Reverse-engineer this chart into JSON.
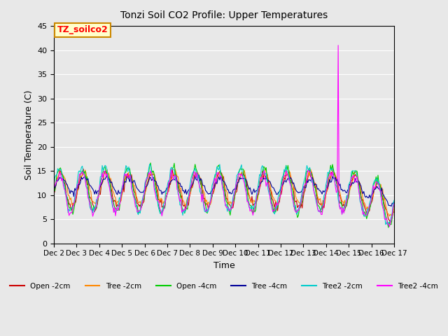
{
  "title": "Tonzi Soil CO2 Profile: Upper Temperatures",
  "xlabel": "Time",
  "ylabel": "Soil Temperature (C)",
  "ylim": [
    0,
    45
  ],
  "yticks": [
    0,
    5,
    10,
    15,
    20,
    25,
    30,
    35,
    40,
    45
  ],
  "x_labels": [
    "Dec 2",
    "Dec 3",
    "Dec 4",
    "Dec 5",
    "Dec 6",
    "Dec 7",
    "Dec 8",
    "Dec 9",
    "Dec 10",
    "Dec 11",
    "Dec 12",
    "Dec 13",
    "Dec 14",
    "Dec 15",
    "Dec 16",
    "Dec 17"
  ],
  "background_color": "#e8e8e8",
  "plot_bg_color": "#e8e8e8",
  "annotation_text": "TZ_soilco2",
  "annotation_bg": "#ffffcc",
  "annotation_border": "#cc8800",
  "series": [
    {
      "label": "Open -2cm",
      "color": "#cc0000"
    },
    {
      "label": "Tree -2cm",
      "color": "#ff8800"
    },
    {
      "label": "Open -4cm",
      "color": "#00cc00"
    },
    {
      "label": "Tree -4cm",
      "color": "#000099"
    },
    {
      "label": "Tree2 -2cm",
      "color": "#00cccc"
    },
    {
      "label": "Tree2 -4cm",
      "color": "#ff00ff"
    }
  ]
}
